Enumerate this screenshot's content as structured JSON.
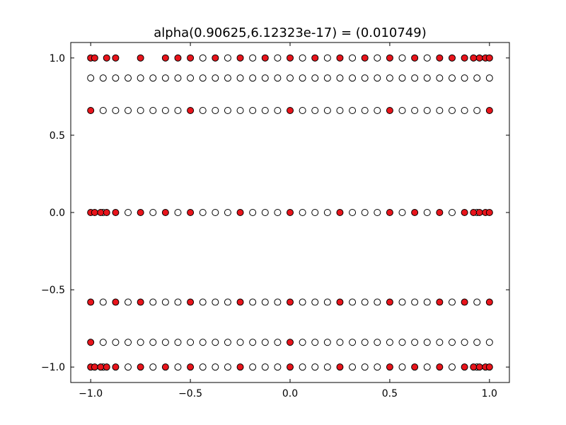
{
  "chart_data": {
    "type": "scatter",
    "title": "alpha(0.90625,6.12323e-17) =  (0.010749)",
    "xlabel": "",
    "ylabel": "",
    "xlim": [
      -1.1,
      1.1
    ],
    "ylim": [
      -1.1,
      1.1
    ],
    "xticks": [
      -1.0,
      -0.5,
      0.0,
      0.5,
      1.0
    ],
    "yticks": [
      -1.0,
      -0.5,
      0.0,
      0.5,
      1.0
    ],
    "xtick_labels": [
      "−1.0",
      "−0.5",
      "0.0",
      "0.5",
      "1.0"
    ],
    "ytick_labels": [
      "−1.0",
      "−0.5",
      "0.0",
      "0.5",
      "1.0"
    ],
    "grid": false,
    "legend": "none",
    "colors": {
      "selected": "#e8141b",
      "unselected": "#ffffff",
      "edge": "#000000"
    },
    "series": [
      {
        "marker": "open-circle",
        "points": [
          [
            -0.9375,
            -1
          ],
          [
            -0.8125,
            -1
          ],
          [
            -0.6875,
            -1
          ],
          [
            -0.5625,
            -1
          ],
          [
            -0.4375,
            -1
          ],
          [
            -0.375,
            -1
          ],
          [
            -0.3125,
            -1
          ],
          [
            -0.1875,
            -1
          ],
          [
            -0.125,
            -1
          ],
          [
            -0.0625,
            -1
          ],
          [
            0.0625,
            -1
          ],
          [
            0.125,
            -1
          ],
          [
            0.1875,
            -1
          ],
          [
            0.3125,
            -1
          ],
          [
            0.375,
            -1
          ],
          [
            0.4375,
            -1
          ],
          [
            0.5625,
            -1
          ],
          [
            0.6875,
            -1
          ],
          [
            0.8125,
            -1
          ],
          [
            0.9375,
            -1
          ],
          [
            -0.9375,
            -0.84
          ],
          [
            -0.875,
            -0.84
          ],
          [
            -0.8125,
            -0.84
          ],
          [
            -0.75,
            -0.84
          ],
          [
            -0.6875,
            -0.84
          ],
          [
            -0.625,
            -0.84
          ],
          [
            -0.5625,
            -0.84
          ],
          [
            -0.5,
            -0.84
          ],
          [
            -0.4375,
            -0.84
          ],
          [
            -0.375,
            -0.84
          ],
          [
            -0.3125,
            -0.84
          ],
          [
            -0.25,
            -0.84
          ],
          [
            -0.1875,
            -0.84
          ],
          [
            -0.125,
            -0.84
          ],
          [
            -0.0625,
            -0.84
          ],
          [
            0.0625,
            -0.84
          ],
          [
            0.125,
            -0.84
          ],
          [
            0.1875,
            -0.84
          ],
          [
            0.25,
            -0.84
          ],
          [
            0.3125,
            -0.84
          ],
          [
            0.375,
            -0.84
          ],
          [
            0.4375,
            -0.84
          ],
          [
            0.5,
            -0.84
          ],
          [
            0.5625,
            -0.84
          ],
          [
            0.625,
            -0.84
          ],
          [
            0.6875,
            -0.84
          ],
          [
            0.75,
            -0.84
          ],
          [
            0.8125,
            -0.84
          ],
          [
            0.875,
            -0.84
          ],
          [
            0.9375,
            -0.84
          ],
          [
            1.0,
            -0.84
          ],
          [
            -0.9375,
            -0.58
          ],
          [
            -0.8125,
            -0.58
          ],
          [
            -0.6875,
            -0.58
          ],
          [
            -0.625,
            -0.58
          ],
          [
            -0.5625,
            -0.58
          ],
          [
            -0.4375,
            -0.58
          ],
          [
            -0.375,
            -0.58
          ],
          [
            -0.3125,
            -0.58
          ],
          [
            -0.1875,
            -0.58
          ],
          [
            -0.125,
            -0.58
          ],
          [
            -0.0625,
            -0.58
          ],
          [
            0.0625,
            -0.58
          ],
          [
            0.125,
            -0.58
          ],
          [
            0.1875,
            -0.58
          ],
          [
            0.3125,
            -0.58
          ],
          [
            0.375,
            -0.58
          ],
          [
            0.4375,
            -0.58
          ],
          [
            0.5625,
            -0.58
          ],
          [
            0.625,
            -0.58
          ],
          [
            0.6875,
            -0.58
          ],
          [
            0.8125,
            -0.58
          ],
          [
            0.9375,
            -0.58
          ],
          [
            -0.9375,
            0
          ],
          [
            -0.8125,
            0
          ],
          [
            -0.6875,
            0
          ],
          [
            -0.5625,
            0
          ],
          [
            -0.4375,
            0
          ],
          [
            -0.375,
            0
          ],
          [
            -0.3125,
            0
          ],
          [
            -0.1875,
            0
          ],
          [
            -0.125,
            0
          ],
          [
            -0.0625,
            0
          ],
          [
            0.0625,
            0
          ],
          [
            0.125,
            0
          ],
          [
            0.1875,
            0
          ],
          [
            0.3125,
            0
          ],
          [
            0.375,
            0
          ],
          [
            0.4375,
            0
          ],
          [
            0.5625,
            0
          ],
          [
            0.6875,
            0
          ],
          [
            0.8125,
            0
          ],
          [
            0.9375,
            0
          ],
          [
            -0.9375,
            0.66
          ],
          [
            -0.875,
            0.66
          ],
          [
            -0.8125,
            0.66
          ],
          [
            -0.75,
            0.66
          ],
          [
            -0.6875,
            0.66
          ],
          [
            -0.625,
            0.66
          ],
          [
            -0.5625,
            0.66
          ],
          [
            -0.4375,
            0.66
          ],
          [
            -0.375,
            0.66
          ],
          [
            -0.3125,
            0.66
          ],
          [
            -0.25,
            0.66
          ],
          [
            -0.1875,
            0.66
          ],
          [
            -0.125,
            0.66
          ],
          [
            -0.0625,
            0.66
          ],
          [
            0.0625,
            0.66
          ],
          [
            0.125,
            0.66
          ],
          [
            0.1875,
            0.66
          ],
          [
            0.25,
            0.66
          ],
          [
            0.3125,
            0.66
          ],
          [
            0.375,
            0.66
          ],
          [
            0.4375,
            0.66
          ],
          [
            0.5625,
            0.66
          ],
          [
            0.625,
            0.66
          ],
          [
            0.6875,
            0.66
          ],
          [
            0.75,
            0.66
          ],
          [
            0.8125,
            0.66
          ],
          [
            0.875,
            0.66
          ],
          [
            0.9375,
            0.66
          ],
          [
            -1.0,
            0.87
          ],
          [
            -0.9375,
            0.87
          ],
          [
            -0.875,
            0.87
          ],
          [
            -0.8125,
            0.87
          ],
          [
            -0.75,
            0.87
          ],
          [
            -0.6875,
            0.87
          ],
          [
            -0.625,
            0.87
          ],
          [
            -0.5625,
            0.87
          ],
          [
            -0.5,
            0.87
          ],
          [
            -0.4375,
            0.87
          ],
          [
            -0.375,
            0.87
          ],
          [
            -0.3125,
            0.87
          ],
          [
            -0.25,
            0.87
          ],
          [
            -0.1875,
            0.87
          ],
          [
            -0.125,
            0.87
          ],
          [
            -0.0625,
            0.87
          ],
          [
            0.0,
            0.87
          ],
          [
            0.0625,
            0.87
          ],
          [
            0.125,
            0.87
          ],
          [
            0.1875,
            0.87
          ],
          [
            0.25,
            0.87
          ],
          [
            0.3125,
            0.87
          ],
          [
            0.375,
            0.87
          ],
          [
            0.4375,
            0.87
          ],
          [
            0.5,
            0.87
          ],
          [
            0.5625,
            0.87
          ],
          [
            0.625,
            0.87
          ],
          [
            0.6875,
            0.87
          ],
          [
            0.75,
            0.87
          ],
          [
            0.8125,
            0.87
          ],
          [
            0.875,
            0.87
          ],
          [
            0.9375,
            0.87
          ],
          [
            1.0,
            0.87
          ],
          [
            -0.4375,
            1
          ],
          [
            -0.3125,
            1
          ],
          [
            -0.1875,
            1
          ],
          [
            -0.0625,
            1
          ],
          [
            0.0625,
            1
          ],
          [
            0.1875,
            1
          ],
          [
            0.3125,
            1
          ],
          [
            0.4375,
            1
          ],
          [
            0.5625,
            1
          ],
          [
            0.6875,
            1
          ]
        ]
      },
      {
        "marker": "filled-circle",
        "points": [
          [
            -1.0,
            -1
          ],
          [
            -0.98,
            -1
          ],
          [
            -0.95,
            -1
          ],
          [
            -0.92,
            -1
          ],
          [
            -0.875,
            -1
          ],
          [
            -0.75,
            -1
          ],
          [
            -0.625,
            -1
          ],
          [
            -0.5,
            -1
          ],
          [
            -0.25,
            -1
          ],
          [
            0.0,
            -1
          ],
          [
            0.25,
            -1
          ],
          [
            0.5,
            -1
          ],
          [
            0.625,
            -1
          ],
          [
            0.75,
            -1
          ],
          [
            0.875,
            -1
          ],
          [
            0.92,
            -1
          ],
          [
            0.95,
            -1
          ],
          [
            0.98,
            -1
          ],
          [
            1.0,
            -1
          ],
          [
            -1.0,
            -0.84
          ],
          [
            0.0,
            -0.84
          ],
          [
            -1.0,
            -0.58
          ],
          [
            -0.875,
            -0.58
          ],
          [
            -0.75,
            -0.58
          ],
          [
            -0.5,
            -0.58
          ],
          [
            -0.25,
            -0.58
          ],
          [
            0.0,
            -0.58
          ],
          [
            0.25,
            -0.58
          ],
          [
            0.5,
            -0.58
          ],
          [
            0.75,
            -0.58
          ],
          [
            0.875,
            -0.58
          ],
          [
            1.0,
            -0.58
          ],
          [
            -1.0,
            0
          ],
          [
            -0.98,
            0
          ],
          [
            -0.95,
            0
          ],
          [
            -0.92,
            0
          ],
          [
            -0.875,
            0
          ],
          [
            -0.75,
            0
          ],
          [
            -0.625,
            0
          ],
          [
            -0.5,
            0
          ],
          [
            -0.25,
            0
          ],
          [
            0.0,
            0
          ],
          [
            0.25,
            0
          ],
          [
            0.5,
            0
          ],
          [
            0.625,
            0
          ],
          [
            0.75,
            0
          ],
          [
            0.875,
            0
          ],
          [
            0.92,
            0
          ],
          [
            0.95,
            0
          ],
          [
            0.98,
            0
          ],
          [
            1.0,
            0
          ],
          [
            -1.0,
            0.66
          ],
          [
            -0.5,
            0.66
          ],
          [
            0.0,
            0.66
          ],
          [
            0.5,
            0.66
          ],
          [
            1.0,
            0.66
          ],
          [
            -1.0,
            1
          ],
          [
            -0.98,
            1
          ],
          [
            -0.92,
            1
          ],
          [
            -0.875,
            1
          ],
          [
            -0.75,
            1
          ],
          [
            -0.625,
            1
          ],
          [
            -0.5625,
            1
          ],
          [
            -0.5,
            1
          ],
          [
            -0.375,
            1
          ],
          [
            -0.25,
            1
          ],
          [
            -0.125,
            1
          ],
          [
            0.0,
            1
          ],
          [
            0.125,
            1
          ],
          [
            0.25,
            1
          ],
          [
            0.375,
            1
          ],
          [
            0.5,
            1
          ],
          [
            0.625,
            1
          ],
          [
            0.75,
            1
          ],
          [
            0.8125,
            1
          ],
          [
            0.875,
            1
          ],
          [
            0.92,
            1
          ],
          [
            0.95,
            1
          ],
          [
            0.98,
            1
          ],
          [
            1.0,
            1
          ]
        ]
      }
    ]
  }
}
